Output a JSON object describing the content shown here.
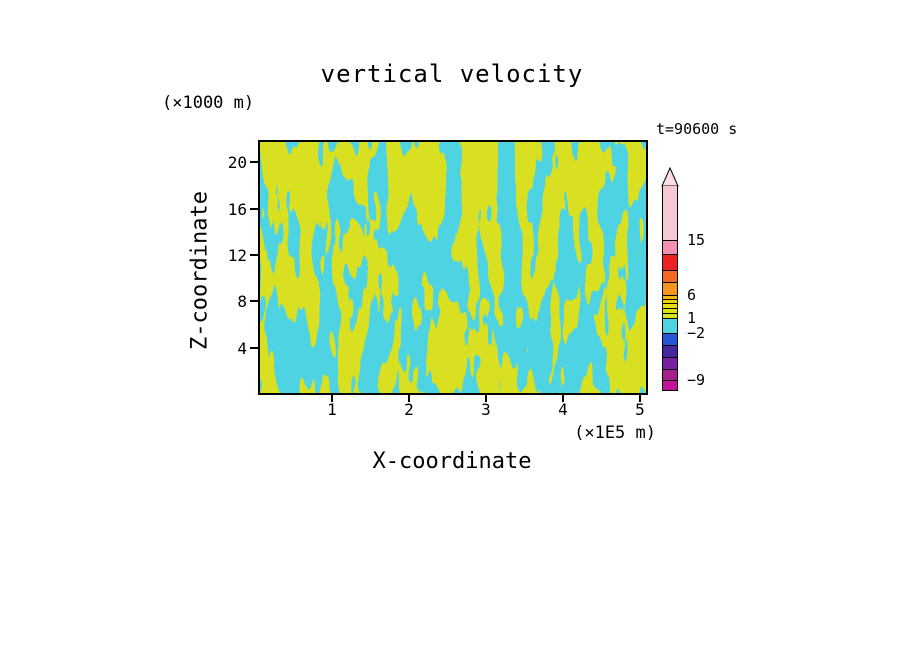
{
  "title": "vertical velocity",
  "time_label": "t=90600 s",
  "axes": {
    "x": {
      "label": "X-coordinate",
      "unit": "(×1E5 m)",
      "ticks": [
        "1",
        "2",
        "3",
        "4",
        "5"
      ]
    },
    "z": {
      "label": "Z-coordinate",
      "unit": "(×1000 m)",
      "ticks": [
        "20",
        "16",
        "12",
        "8",
        "4"
      ]
    }
  },
  "colorbar": {
    "labels": [
      "15",
      "6",
      "1",
      "−2",
      "−9"
    ],
    "arrow_color": "#f9dce6",
    "segments": [
      {
        "color": "#f6c8d4",
        "h": 54
      },
      {
        "color": "#f291b4",
        "h": 14
      },
      {
        "color": "#ee2222",
        "h": 16
      },
      {
        "color": "#f26a21",
        "h": 12
      },
      {
        "color": "#f79420",
        "h": 13
      },
      {
        "color": "#f5b50a",
        "h": 4
      },
      {
        "color": "#eecf00",
        "h": 4
      },
      {
        "color": "#e6df00",
        "h": 5
      },
      {
        "color": "#dce300",
        "h": 5
      },
      {
        "color": "#d4e021",
        "h": 5
      },
      {
        "color": "#4ed3e3",
        "h": 15
      },
      {
        "color": "#2456d8",
        "h": 12
      },
      {
        "color": "#4527a0",
        "h": 12
      },
      {
        "color": "#7b1fa2",
        "h": 12
      },
      {
        "color": "#a8208e",
        "h": 11
      },
      {
        "color": "#c4119b",
        "h": 10
      }
    ]
  },
  "field": {
    "positive_color": "#d9e021",
    "negative_color": "#4ed3e3"
  },
  "chart_data": {
    "type": "heatmap",
    "title": "vertical velocity",
    "xlabel": "X-coordinate",
    "x_unit": "×1E5 m",
    "xlim": [
      0,
      5.1
    ],
    "xticks": [
      1,
      2,
      3,
      4,
      5
    ],
    "ylabel": "Z-coordinate",
    "y_unit": "×1000 m",
    "ylim": [
      0,
      22
    ],
    "yticks": [
      4,
      8,
      12,
      16,
      20
    ],
    "annotation": "t=90600 s",
    "legend_position": "right-colorbar-with-arrow-top",
    "colorbar_labeled_levels": [
      15,
      6,
      1,
      -2,
      -9
    ],
    "palette_top_to_bottom": [
      "#f6c8d4",
      "#f291b4",
      "#ee2222",
      "#f26a21",
      "#f79420",
      "#f5b50a",
      "#eecf00",
      "#e6df00",
      "#dce300",
      "#d4e021",
      "#4ed3e3",
      "#2456d8",
      "#4527a0",
      "#7b1fa2",
      "#a8208e",
      "#c4119b"
    ],
    "field_summary": "Chaotic filled-contour field of vertical velocity: interleaved vertically elongated streaks covering roughly half yellow-green (band just above level 1) and half cyan (band between −2 and 1); no extreme (red/pink or blue/purple) values visible in the plot interior.",
    "grid": false
  }
}
